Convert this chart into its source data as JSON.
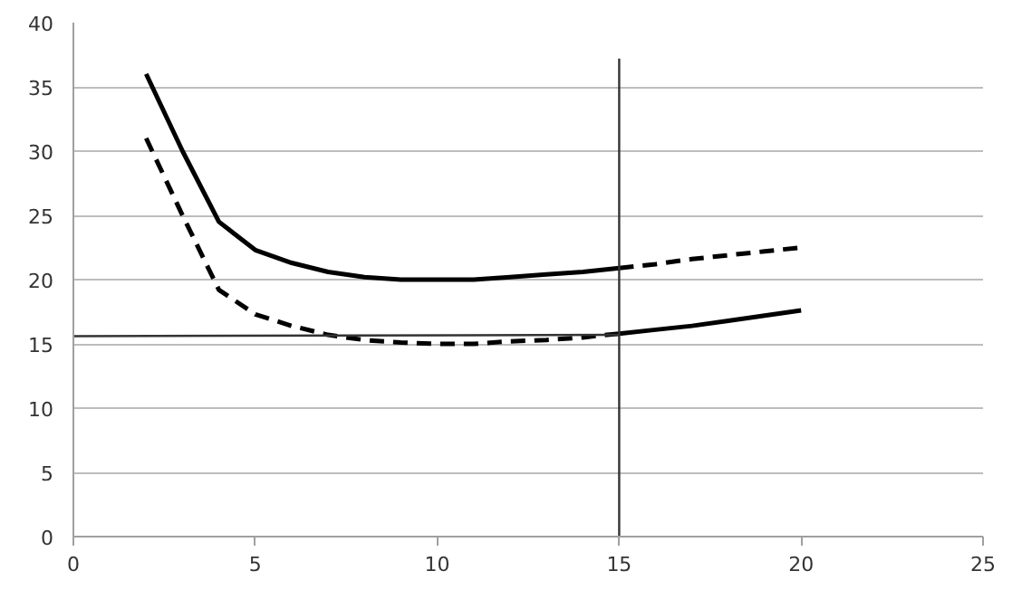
{
  "chart_data": {
    "type": "line",
    "xlim": [
      0,
      25
    ],
    "ylim": [
      0,
      40
    ],
    "xticks": [
      0,
      5,
      10,
      15,
      20,
      25
    ],
    "yticks": [
      0,
      5,
      10,
      15,
      20,
      25,
      30,
      35,
      40
    ],
    "grid": "y",
    "marker": "none",
    "series": [
      {
        "color": "#000000",
        "line_style": "solid",
        "x": [
          2,
          3,
          4,
          5,
          6,
          7,
          8,
          9,
          10,
          11,
          12,
          13,
          14,
          15
        ],
        "values": [
          36,
          30,
          24.5,
          22.3,
          21.3,
          20.6,
          20.2,
          20,
          20,
          20,
          20.2,
          20.4,
          20.6,
          20.9
        ]
      },
      {
        "color": "#000000",
        "line_style": "dashed",
        "x": [
          15,
          16,
          17,
          18,
          19,
          20
        ],
        "values": [
          20.9,
          21.2,
          21.6,
          21.9,
          22.2,
          22.5
        ]
      },
      {
        "color": "#000000",
        "line_style": "dashed",
        "x": [
          2,
          3,
          4,
          5,
          6,
          7,
          8,
          9,
          10,
          11,
          12,
          13,
          14,
          15
        ],
        "values": [
          31,
          25,
          19.2,
          17.3,
          16.4,
          15.7,
          15.3,
          15.1,
          15,
          15,
          15.2,
          15.3,
          15.5,
          15.8
        ]
      },
      {
        "color": "#000000",
        "line_style": "solid",
        "x": [
          15,
          16,
          17,
          18,
          19,
          20
        ],
        "values": [
          15.8,
          16.1,
          16.4,
          16.8,
          17.2,
          17.6
        ]
      },
      {
        "color": "#333333",
        "line_style": "solid",
        "x": [
          0,
          15
        ],
        "values": [
          15.6,
          15.7
        ]
      },
      {
        "color": "#333333",
        "line_style": "solid",
        "x": [
          15,
          15
        ],
        "values": [
          0,
          37.2
        ]
      }
    ]
  }
}
